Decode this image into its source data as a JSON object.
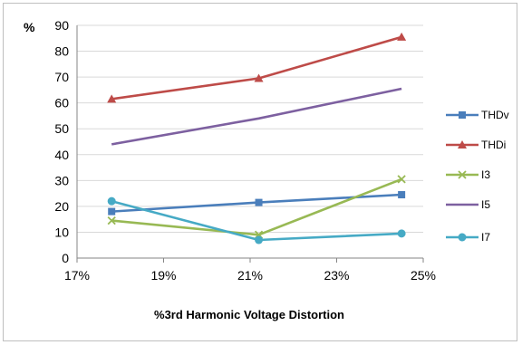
{
  "chart_data": {
    "type": "line",
    "title": "",
    "xlabel": "%3rd Harmonic Voltage Distortion",
    "ylabel": "%",
    "xlim": [
      0.17,
      0.25
    ],
    "ylim": [
      0,
      90
    ],
    "xticks": [
      "17%",
      "19%",
      "21%",
      "23%",
      "25%"
    ],
    "yticks": [
      "0",
      "10",
      "20",
      "30",
      "40",
      "50",
      "60",
      "70",
      "80",
      "90"
    ],
    "x": [
      0.178,
      0.212,
      0.245
    ],
    "grid": "horizontal",
    "legend_position": "right",
    "series": [
      {
        "name": "THDv",
        "values": [
          18,
          21.5,
          24.5
        ],
        "color": "#4a7ebb",
        "marker": "square"
      },
      {
        "name": "THDi",
        "values": [
          61.5,
          69.5,
          85.5
        ],
        "color": "#be4b48",
        "marker": "triangle"
      },
      {
        "name": "I3",
        "values": [
          14.5,
          9,
          30.5
        ],
        "color": "#98b954",
        "marker": "x"
      },
      {
        "name": "I5",
        "values": [
          44,
          54,
          65.5
        ],
        "color": "#7d60a0",
        "marker": "none"
      },
      {
        "name": "I7",
        "values": [
          22,
          7,
          9.5
        ],
        "color": "#46aac5",
        "marker": "circle"
      }
    ]
  }
}
